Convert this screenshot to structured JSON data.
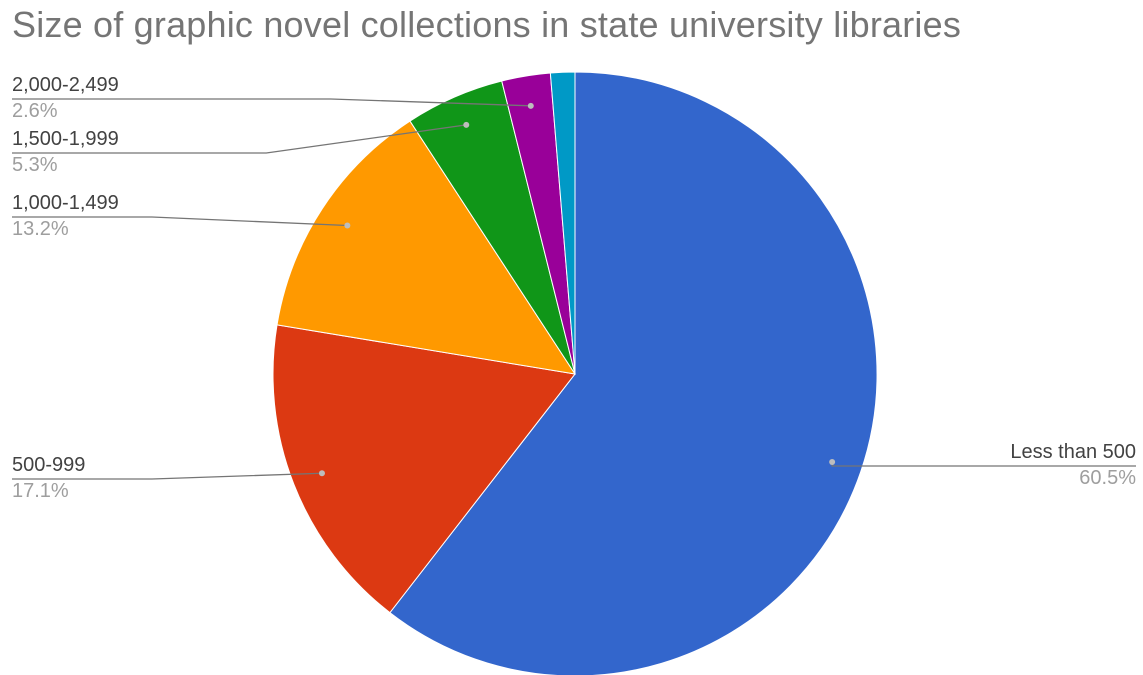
{
  "chart_data": {
    "type": "pie",
    "title": "Size of graphic novel collections in state university libraries",
    "slices": [
      {
        "label": "Less than 500",
        "value": 60.5,
        "percent_label": "60.5%",
        "color": "#3366cc"
      },
      {
        "label": "500-999",
        "value": 17.1,
        "percent_label": "17.1%",
        "color": "#dc3912"
      },
      {
        "label": "1,000-1,499",
        "value": 13.2,
        "percent_label": "13.2%",
        "color": "#ff9900"
      },
      {
        "label": "1,500-1,999",
        "value": 5.3,
        "percent_label": "5.3%",
        "color": "#109618"
      },
      {
        "label": "2,000-2,499",
        "value": 2.6,
        "percent_label": "2.6%",
        "color": "#990099"
      },
      {
        "label": "",
        "value": 1.3,
        "percent_label": "",
        "color": "#0099c6"
      }
    ],
    "legend": "callout-labels"
  }
}
